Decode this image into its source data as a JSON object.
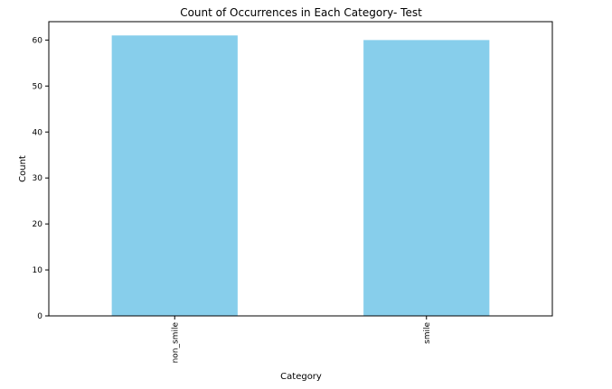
{
  "chart_data": {
    "type": "bar",
    "title": "Count of Occurrences in Each Category- Test",
    "xlabel": "Category",
    "ylabel": "Count",
    "categories": [
      "non_smile",
      "smile"
    ],
    "values": [
      61,
      60
    ],
    "ylim": [
      0,
      64
    ],
    "yticks": [
      0,
      10,
      20,
      30,
      40,
      50,
      60
    ],
    "ytick_labels": [
      "0",
      "10",
      "20",
      "30",
      "40",
      "50",
      "60"
    ],
    "bar_color": "#87ceeb",
    "grid": false,
    "legend": false
  }
}
